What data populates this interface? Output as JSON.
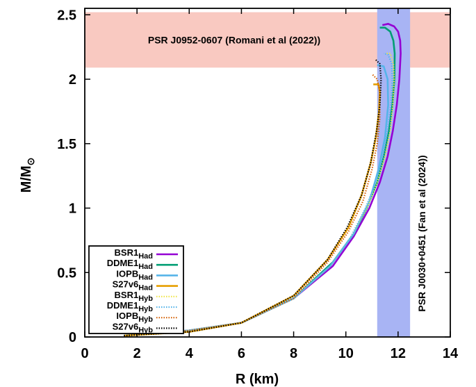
{
  "chart_data": {
    "type": "line",
    "xlabel": "R (km)",
    "ylabel_main": "M/M",
    "ylabel_sub": "⊙",
    "xlim": [
      0,
      14
    ],
    "ylim": [
      0,
      2.55
    ],
    "xticks": [
      0,
      2,
      4,
      6,
      8,
      10,
      12,
      14
    ],
    "xtick_labels": [
      "0",
      "2",
      "4",
      "6",
      "8",
      "10",
      "12",
      "14"
    ],
    "yticks": [
      0,
      0.5,
      1,
      1.5,
      2,
      2.5
    ],
    "ytick_labels": [
      "0",
      "0.5",
      "1",
      "1.5",
      "2",
      "2.5"
    ],
    "grid": false,
    "legend_position": "bottom-left",
    "bands": [
      {
        "orientation": "horizontal",
        "from": 2.09,
        "to": 2.52,
        "color": "#f9c9c1",
        "label": "PSR J0952-0607 (Romani et al (2022))"
      },
      {
        "orientation": "vertical",
        "from": 11.2,
        "to": 12.46,
        "color": "#a8b4f4",
        "label": "PSR J0030+0451 (Fan et al (2024))"
      }
    ],
    "series": [
      {
        "name": "BSR1",
        "sub": "Had",
        "color": "#9400d3",
        "dash": "solid",
        "x": [
          1.5,
          4.0,
          6.0,
          8.0,
          9.5,
          10.3,
          10.9,
          11.3,
          11.6,
          11.8,
          11.95,
          12.05,
          12.1,
          12.08,
          12.0,
          11.85,
          11.62,
          11.4
        ],
        "y": [
          0.01,
          0.05,
          0.11,
          0.3,
          0.55,
          0.78,
          1.0,
          1.2,
          1.4,
          1.6,
          1.8,
          2.0,
          2.2,
          2.3,
          2.37,
          2.41,
          2.43,
          2.42
        ]
      },
      {
        "name": "DDME1",
        "sub": "Had",
        "color": "#009e73",
        "dash": "solid",
        "x": [
          1.5,
          4.0,
          6.0,
          8.0,
          9.5,
          10.3,
          10.8,
          11.2,
          11.45,
          11.65,
          11.78,
          11.86,
          11.87,
          11.82,
          11.7,
          11.5,
          11.3
        ],
        "y": [
          0.01,
          0.05,
          0.11,
          0.3,
          0.58,
          0.8,
          1.0,
          1.2,
          1.4,
          1.6,
          1.8,
          2.0,
          2.2,
          2.3,
          2.37,
          2.4,
          2.4
        ]
      },
      {
        "name": "IOPB",
        "sub": "Had",
        "color": "#56b4e9",
        "dash": "solid",
        "x": [
          1.5,
          4.0,
          6.0,
          8.0,
          9.4,
          10.3,
          10.9,
          11.25,
          11.5,
          11.62,
          11.6,
          11.45,
          11.2
        ],
        "y": [
          0.01,
          0.05,
          0.11,
          0.3,
          0.55,
          0.8,
          1.05,
          1.3,
          1.55,
          1.8,
          2.0,
          2.1,
          2.11
        ]
      },
      {
        "name": "S27v6",
        "sub": "Had",
        "color": "#e69f00",
        "dash": "solid",
        "x": [
          1.5,
          4.0,
          6.0,
          8.0,
          9.3,
          10.1,
          10.6,
          10.95,
          11.15,
          11.27,
          11.3,
          11.25,
          11.05
        ],
        "y": [
          0.01,
          0.04,
          0.11,
          0.32,
          0.6,
          0.85,
          1.1,
          1.35,
          1.55,
          1.75,
          1.9,
          1.96,
          1.96
        ]
      },
      {
        "name": "BSR1",
        "sub": "Hyb",
        "color": "#f0e442",
        "dash": "dot",
        "x": [
          1.5,
          4.0,
          6.0,
          8.0,
          9.4,
          10.2,
          10.8,
          11.2,
          11.5,
          11.7,
          11.8,
          11.85,
          11.82,
          11.7,
          11.55
        ],
        "y": [
          0.01,
          0.05,
          0.11,
          0.3,
          0.55,
          0.78,
          1.0,
          1.2,
          1.4,
          1.6,
          1.8,
          2.0,
          2.12,
          2.2,
          2.2
        ]
      },
      {
        "name": "DDME1",
        "sub": "Hyb",
        "color": "#56b4e9",
        "dash": "dot",
        "x": [
          1.5,
          4.0,
          6.0,
          8.0,
          9.4,
          10.2,
          10.75,
          11.15,
          11.42,
          11.6,
          11.72,
          11.78,
          11.75,
          11.62,
          11.45
        ],
        "y": [
          0.01,
          0.05,
          0.11,
          0.3,
          0.55,
          0.78,
          1.0,
          1.2,
          1.4,
          1.6,
          1.8,
          2.0,
          2.12,
          2.19,
          2.2
        ]
      },
      {
        "name": "IOPB",
        "sub": "Hyb",
        "color": "#d55e00",
        "dash": "dot",
        "x": [
          1.5,
          4.0,
          6.0,
          8.0,
          9.3,
          10.1,
          10.65,
          11.0,
          11.2,
          11.3,
          11.3,
          11.2,
          11.0
        ],
        "y": [
          0.01,
          0.05,
          0.11,
          0.3,
          0.58,
          0.82,
          1.05,
          1.3,
          1.5,
          1.7,
          1.9,
          2.0,
          2.04
        ]
      },
      {
        "name": "S27v6",
        "sub": "Hyb",
        "color": "#000000",
        "dash": "dot",
        "x": [
          1.5,
          4.0,
          6.0,
          8.0,
          9.3,
          10.05,
          10.6,
          10.95,
          11.18,
          11.3,
          11.35,
          11.3,
          11.15
        ],
        "y": [
          0.01,
          0.04,
          0.11,
          0.32,
          0.6,
          0.85,
          1.1,
          1.35,
          1.6,
          1.8,
          2.0,
          2.12,
          2.15
        ]
      }
    ]
  }
}
